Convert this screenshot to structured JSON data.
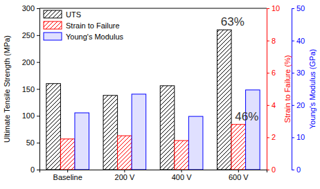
{
  "chart_data": {
    "type": "bar",
    "categories": [
      "Baseline",
      "200 V",
      "400 V",
      "600 V"
    ],
    "series": [
      {
        "name": "UTS",
        "color": "#000000",
        "values": [
          160,
          138,
          156,
          260
        ]
      },
      {
        "name": "Strain to Failure",
        "color": "#ff0000",
        "axis": "y2",
        "values": [
          1.9,
          2.1,
          1.8,
          2.8
        ]
      },
      {
        "name": "Young's Modulus",
        "color": "#0000ff",
        "axis": "y3",
        "values": [
          17.6,
          23.4,
          16.5,
          24.7
        ]
      }
    ],
    "ylabel": "Ultimate Tensile Strength (MPa)",
    "y2label": "Strain to Failure (%)",
    "y3label": "Young's Modulus (GPa)",
    "ylim": [
      0,
      300
    ],
    "yticks": [
      0,
      50,
      100,
      150,
      200,
      250,
      300
    ],
    "y2lim": [
      0,
      10
    ],
    "y2ticks": [
      0,
      2,
      4,
      6,
      8,
      10
    ],
    "y3lim": [
      0,
      50
    ],
    "y3ticks": [
      0,
      10,
      20,
      30,
      40,
      50
    ],
    "legend": "upper left",
    "annotations": [
      {
        "text": "63%",
        "category": "600 V",
        "series": "UTS"
      },
      {
        "text": "46%",
        "category": "600 V",
        "series": "Strain to Failure"
      }
    ]
  }
}
